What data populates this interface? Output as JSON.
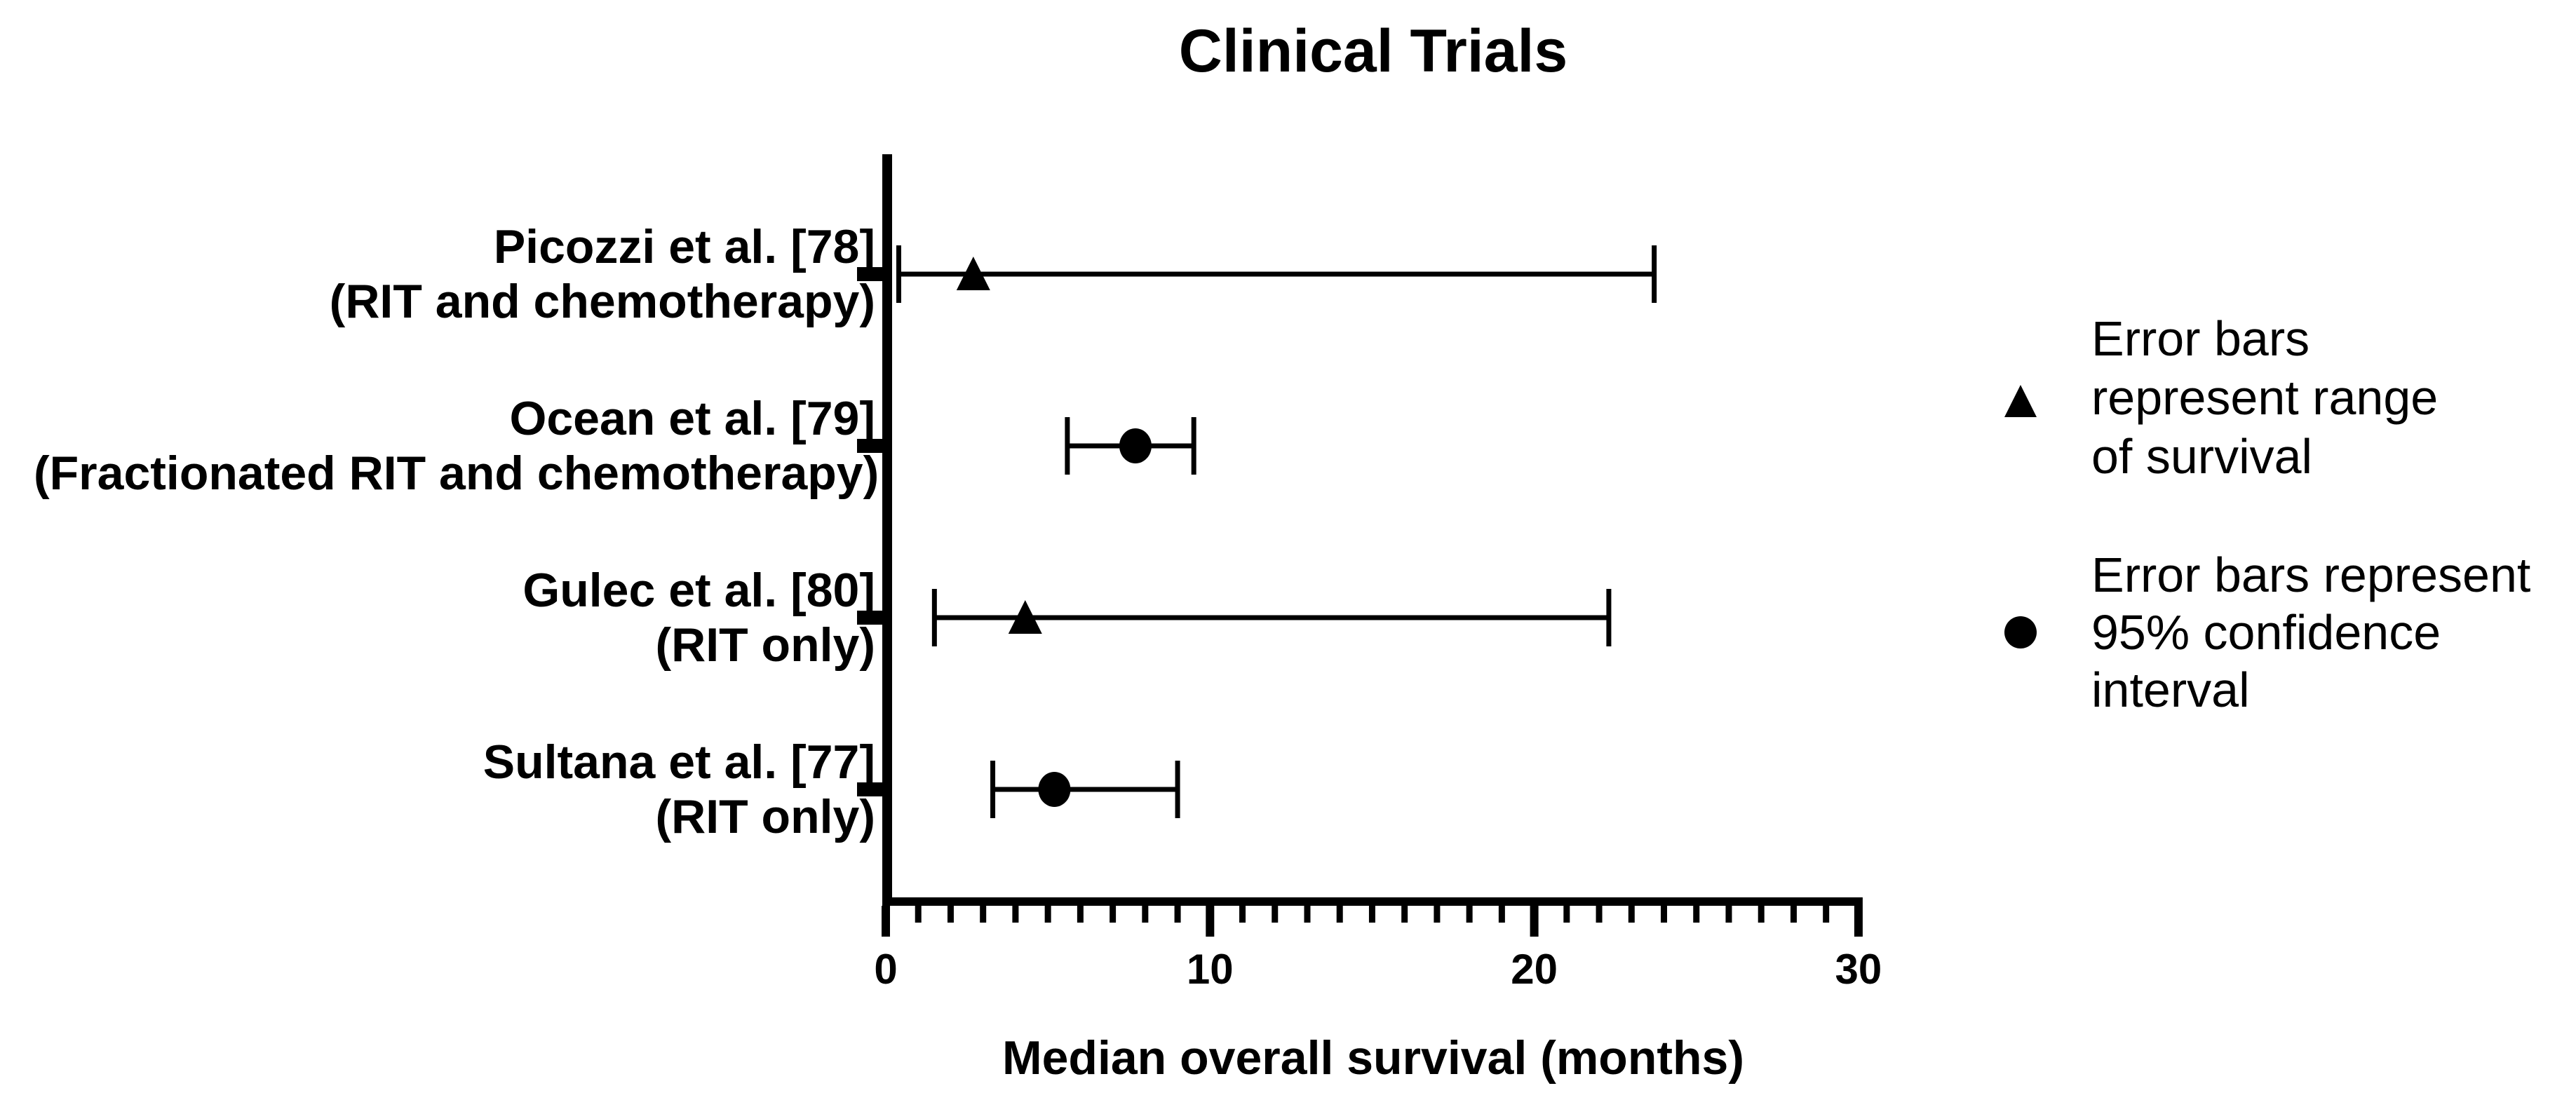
{
  "title": "Clinical Trials",
  "x_axis": {
    "label": "Median overall survival (months)",
    "min": 0,
    "max": 30,
    "major_ticks": [
      0,
      10,
      20,
      30
    ],
    "minor_tick_interval": 1
  },
  "legend": {
    "items": [
      {
        "marker": "triangle-icon",
        "lines": [
          "Error bars",
          "represent range",
          "of survival"
        ]
      },
      {
        "marker": "circle-icon",
        "lines": [
          "Error bars represent",
          "95% confidence",
          "interval"
        ]
      }
    ]
  },
  "chart_data": {
    "type": "scatter",
    "subtype": "horizontal-error-bar forest plot",
    "title": "Clinical Trials",
    "xlabel": "Median overall survival (months)",
    "ylabel": "",
    "xlim": [
      0,
      30
    ],
    "x_major_ticks": [
      0,
      10,
      20,
      30
    ],
    "x_minor_tick_interval": 1,
    "grid": false,
    "legend_position": "right",
    "rows": [
      {
        "label": "Picozzi et al. [78]",
        "sublabel": "(RIT and chemotherapy)",
        "marker": "triangle",
        "median": 2.7,
        "low": 0.4,
        "high": 23.7,
        "error_bar_meaning": "range of survival"
      },
      {
        "label": "Ocean et al. [79]",
        "sublabel": "(Fractionated RIT and chemotherapy)",
        "marker": "circle",
        "median": 7.7,
        "low": 5.6,
        "high": 9.5,
        "error_bar_meaning": "95% confidence interval"
      },
      {
        "label": "Gulec et al. [80]",
        "sublabel": "(RIT only)",
        "marker": "triangle",
        "median": 4.3,
        "low": 1.5,
        "high": 22.3,
        "error_bar_meaning": "range of survival"
      },
      {
        "label": "Sultana et al. [77]",
        "sublabel": "(RIT only)",
        "marker": "circle",
        "median": 5.2,
        "low": 3.3,
        "high": 9.0,
        "error_bar_meaning": "95% confidence interval"
      }
    ]
  },
  "colors": {
    "foreground": "#000000",
    "background": "#ffffff"
  }
}
